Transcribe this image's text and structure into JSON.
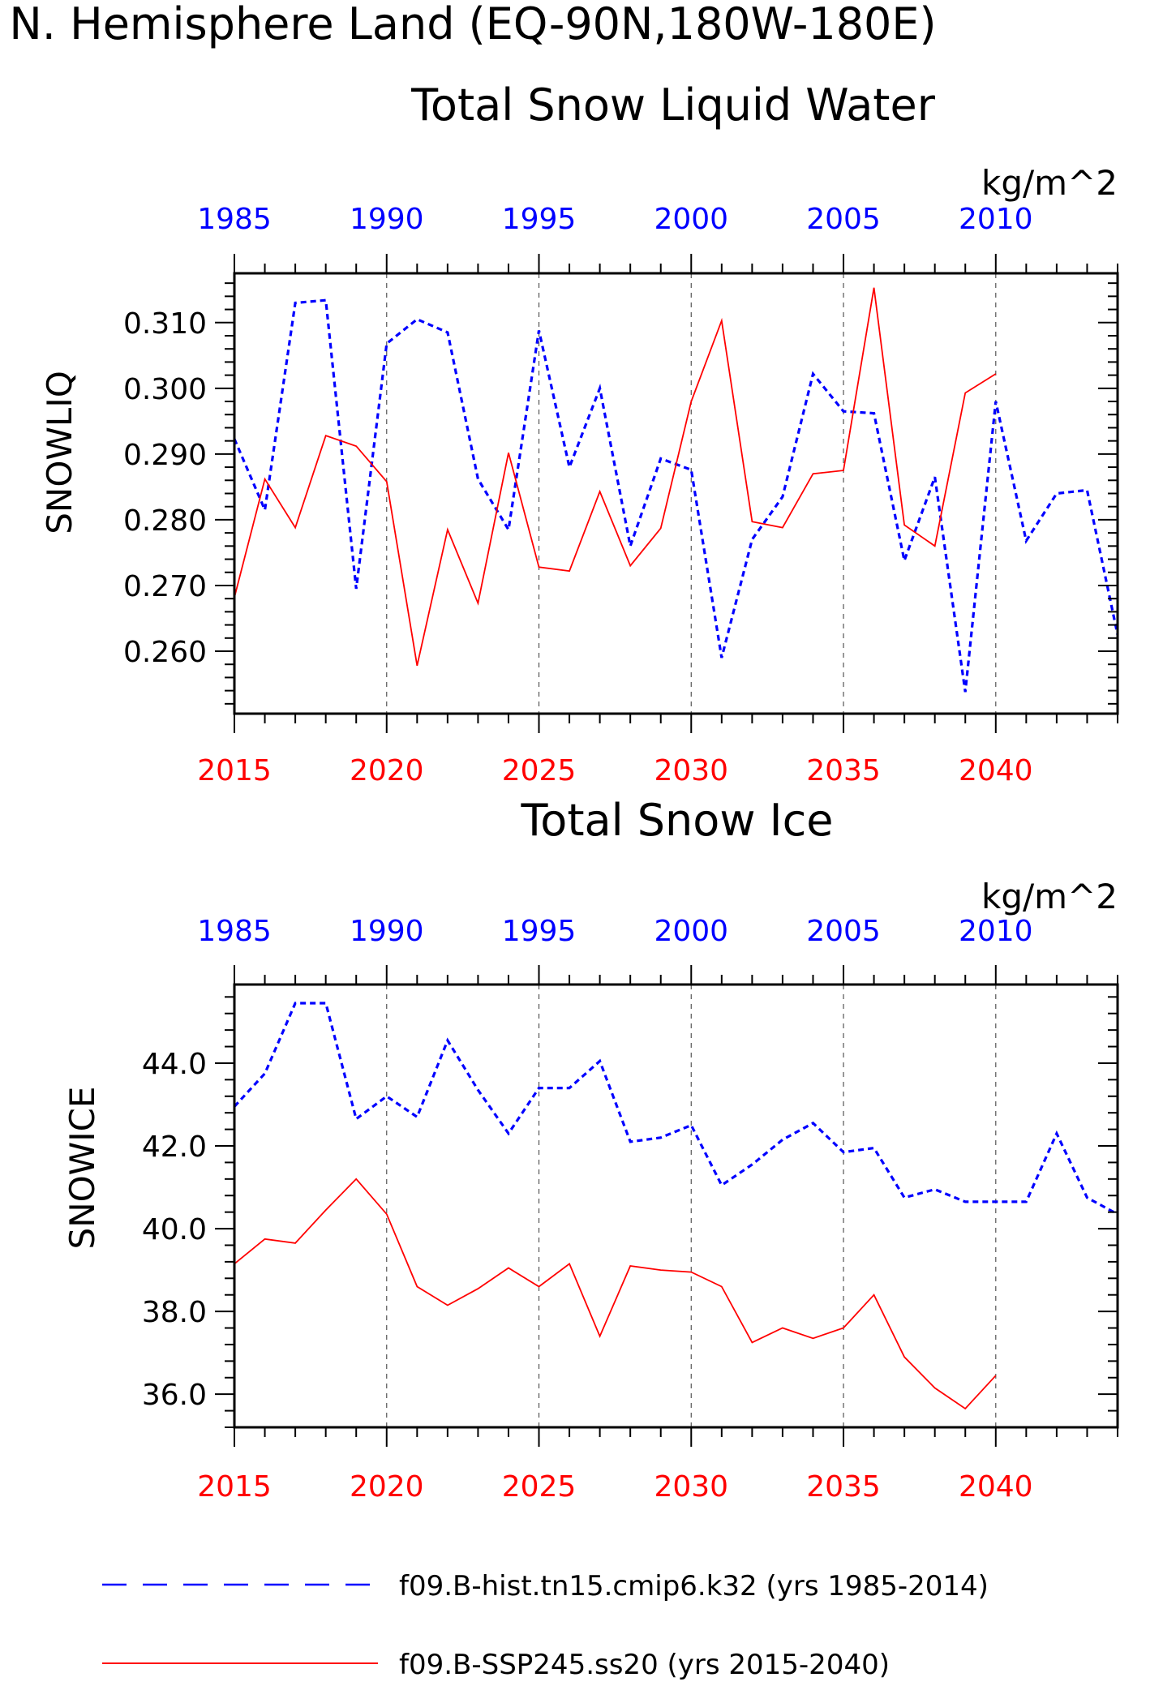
{
  "figure_title": "N. Hemisphere Land (EQ-90N,180W-180E)",
  "colors": {
    "hist": "#0000ff",
    "ssp": "#ff0000",
    "axis": "#000000",
    "grid": "#555555"
  },
  "top_axis_ticks": [
    "1985",
    "1990",
    "1995",
    "2000",
    "2005",
    "2010"
  ],
  "bottom_axis_ticks": [
    "2015",
    "2020",
    "2025",
    "2030",
    "2035",
    "2040"
  ],
  "legend": {
    "hist_label": "f09.B-hist.tn15.cmip6.k32 (yrs 1985-2014)",
    "ssp_label": "f09.B-SSP245.ss20 (yrs 2015-2040)"
  },
  "chart_data": [
    {
      "type": "line",
      "title": "Total Snow Liquid Water",
      "ylabel": "SNOWLIQ",
      "units": "kg/m^2",
      "ylim": [
        0.2505,
        0.3175
      ],
      "yticks": [
        "0.260",
        "0.270",
        "0.280",
        "0.290",
        "0.300",
        "0.310"
      ],
      "series": [
        {
          "name": "f09.B-hist.tn15.cmip6.k32 (yrs 1985-2014)",
          "x_axis": "top",
          "style": "dashed",
          "x": [
            1985,
            1986,
            1987,
            1988,
            1989,
            1990,
            1991,
            1992,
            1993,
            1994,
            1995,
            1996,
            1997,
            1998,
            1999,
            2000,
            2001,
            2002,
            2003,
            2004,
            2005,
            2006,
            2007,
            2008,
            2009,
            2010,
            2011,
            2012,
            2013,
            2014
          ],
          "values": [
            0.2923,
            0.2815,
            0.313,
            0.3134,
            0.2695,
            0.3068,
            0.3105,
            0.3085,
            0.2862,
            0.2785,
            0.3088,
            0.288,
            0.3,
            0.276,
            0.2893,
            0.2876,
            0.259,
            0.277,
            0.2835,
            0.3022,
            0.2965,
            0.2962,
            0.2738,
            0.2865,
            0.2538,
            0.298,
            0.2768,
            0.284,
            0.2845,
            0.2625
          ]
        },
        {
          "name": "f09.B-SSP245.ss20 (yrs 2015-2040)",
          "x_axis": "bottom",
          "style": "solid",
          "x": [
            2015,
            2016,
            2017,
            2018,
            2019,
            2020,
            2021,
            2022,
            2023,
            2024,
            2025,
            2026,
            2027,
            2028,
            2029,
            2030,
            2031,
            2032,
            2033,
            2034,
            2035,
            2036,
            2037,
            2038,
            2039,
            2040
          ],
          "values": [
            0.2682,
            0.2862,
            0.2788,
            0.2928,
            0.2912,
            0.2858,
            0.2578,
            0.2785,
            0.2673,
            0.2902,
            0.2728,
            0.2722,
            0.2843,
            0.273,
            0.2787,
            0.298,
            0.3103,
            0.2797,
            0.2788,
            0.287,
            0.2875,
            0.3153,
            0.2792,
            0.276,
            0.2993,
            0.3022
          ]
        }
      ]
    },
    {
      "type": "line",
      "title": "Total Snow Ice",
      "ylabel": "SNOWICE",
      "units": "kg/m^2",
      "ylim": [
        35.2,
        45.9
      ],
      "yticks": [
        "36.0",
        "38.0",
        "40.0",
        "42.0",
        "44.0"
      ],
      "series": [
        {
          "name": "f09.B-hist.tn15.cmip6.k32 (yrs 1985-2014)",
          "x_axis": "top",
          "style": "dashed",
          "x": [
            1985,
            1986,
            1987,
            1988,
            1989,
            1990,
            1991,
            1992,
            1993,
            1994,
            1995,
            1996,
            1997,
            1998,
            1999,
            2000,
            2001,
            2002,
            2003,
            2004,
            2005,
            2006,
            2007,
            2008,
            2009,
            2010,
            2011,
            2012,
            2013,
            2014
          ],
          "values": [
            42.95,
            43.75,
            45.45,
            45.45,
            42.65,
            43.2,
            42.7,
            44.55,
            43.35,
            42.3,
            43.4,
            43.4,
            44.05,
            42.1,
            42.2,
            42.5,
            41.05,
            41.55,
            42.15,
            42.55,
            41.85,
            41.95,
            40.75,
            40.95,
            40.65,
            40.65,
            40.65,
            42.3,
            40.75,
            40.35
          ]
        },
        {
          "name": "f09.B-SSP245.ss20 (yrs 2015-2040)",
          "x_axis": "bottom",
          "style": "solid",
          "x": [
            2015,
            2016,
            2017,
            2018,
            2019,
            2020,
            2021,
            2022,
            2023,
            2024,
            2025,
            2026,
            2027,
            2028,
            2029,
            2030,
            2031,
            2032,
            2033,
            2034,
            2035,
            2036,
            2037,
            2038,
            2039,
            2040
          ],
          "values": [
            39.15,
            39.75,
            39.65,
            40.45,
            41.2,
            40.35,
            38.6,
            38.15,
            38.55,
            39.05,
            38.6,
            39.15,
            37.4,
            39.1,
            39.0,
            38.95,
            38.6,
            37.25,
            37.6,
            37.35,
            37.6,
            38.4,
            36.9,
            36.15,
            35.65,
            36.45
          ]
        }
      ]
    }
  ]
}
